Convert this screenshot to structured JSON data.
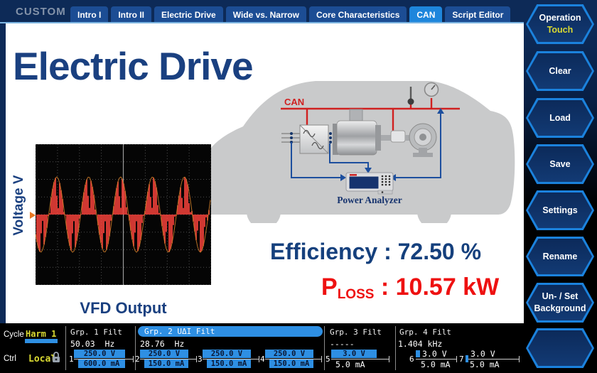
{
  "header": {
    "brand": "CUSTOM",
    "tabs": [
      {
        "label": "Intro I",
        "active": false
      },
      {
        "label": "Intro II",
        "active": false
      },
      {
        "label": "Electric Drive",
        "active": false
      },
      {
        "label": "Wide vs. Narrow",
        "active": false
      },
      {
        "label": "Core Characteristics",
        "active": false
      },
      {
        "label": "CAN",
        "active": true
      },
      {
        "label": "Script Editor",
        "active": false
      }
    ]
  },
  "sidebar": {
    "buttons": [
      {
        "label": "Operation",
        "sublabel": "Touch"
      },
      {
        "label": "Clear"
      },
      {
        "label": "Load"
      },
      {
        "label": "Save"
      },
      {
        "label": "Settings"
      },
      {
        "label": "Rename"
      },
      {
        "label": "Un- / Set",
        "label_line2": "Background"
      },
      {
        "label": ""
      }
    ]
  },
  "main": {
    "title": "Electric Drive",
    "scope": {
      "ylabel": "Voltage V",
      "caption": "VFD Output",
      "periods": 5.5,
      "trace_color": "#f4423b",
      "envelope_color": "#c97a28",
      "grid_divisions": 8
    },
    "diagram": {
      "bus_label": "CAN",
      "analyzer_label": "Power Analyzer"
    },
    "metrics": {
      "efficiency_label": "Efficiency",
      "separator": " : ",
      "efficiency_value": "72.50 %",
      "ploss_symbol": "P",
      "ploss_subscript": "LOSS",
      "ploss_value": "10.57 kW"
    }
  },
  "statusbar": {
    "cycle_label": "Cycle",
    "cycle_value": "Harm 1",
    "ctrl_label": "Ctrl",
    "ctrl_value": "Local",
    "groups": [
      {
        "label": "Grp. 1 Filt",
        "value": "50.03  Hz"
      },
      {
        "label": "Grp. 2 UΔI Filt",
        "value": "28.76  Hz",
        "highlighted": true
      },
      {
        "label": "Grp. 3 Filt",
        "value": "-----"
      },
      {
        "label": "Grp. 4 Filt",
        "value": "1.404 kHz"
      }
    ],
    "channels": [
      {
        "num": "1",
        "voltage": "250.0 V",
        "current": "600.0 mA"
      },
      {
        "num": "2",
        "voltage": "250.0 V",
        "current": "150.0 mA"
      },
      {
        "num": "3",
        "voltage": "250.0 V",
        "current": "150.0 mA"
      },
      {
        "num": "4",
        "voltage": "250.0 V",
        "current": "150.0 mA"
      },
      {
        "num": "5",
        "voltage": "3.0 V",
        "current": "5.0 mA"
      },
      {
        "num": "6",
        "voltage": "3.0 V",
        "current": "5.0 mA"
      },
      {
        "num": "7",
        "voltage": "3.0 V",
        "current": "5.0 mA"
      }
    ]
  },
  "colors": {
    "navy": "#0d2a57",
    "tab_inactive": "#1c4d94",
    "tab_active": "#1e86dc",
    "accent_bar_blue": "#2e8fe3",
    "title_blue": "#1a4080",
    "alert_red": "#ee1111",
    "status_yellow": "#d9d932"
  }
}
